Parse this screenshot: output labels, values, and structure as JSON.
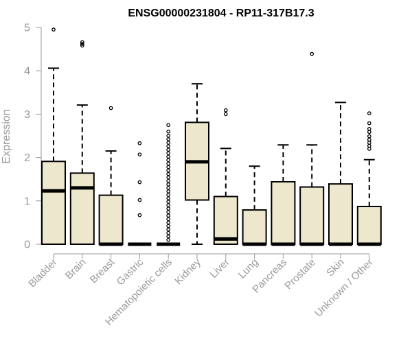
{
  "chart_data": {
    "type": "boxplot",
    "title": "ENSG00000231804 - RP11-317B17.3",
    "xlabel": "",
    "ylabel": "Expression",
    "ylim": [
      0,
      5
    ],
    "yticks": [
      0,
      1,
      2,
      3,
      4,
      5
    ],
    "colors": {
      "box_fill": "#ede7cd",
      "axis": "#999999",
      "stroke": "#000000"
    },
    "categories": [
      "Bladder",
      "Brain",
      "Breast",
      "Gastric",
      "Hematopoietic cells",
      "Kidney",
      "Liver",
      "Lung",
      "Pancreas",
      "Prostate",
      "Skin",
      "Unknown / Other"
    ],
    "boxes": [
      {
        "name": "Bladder",
        "q1": 0,
        "median": 1.23,
        "q3": 1.91,
        "whisker_low": 0,
        "whisker_high": 4.06,
        "outliers": [
          4.95
        ]
      },
      {
        "name": "Brain",
        "q1": 0,
        "median": 1.3,
        "q3": 1.64,
        "whisker_low": 0,
        "whisker_high": 3.21,
        "outliers": [
          4.58,
          4.62,
          4.66
        ]
      },
      {
        "name": "Breast",
        "q1": 0,
        "median": 0,
        "q3": 1.13,
        "whisker_low": 0,
        "whisker_high": 2.15,
        "outliers": [
          3.14
        ]
      },
      {
        "name": "Gastric",
        "q1": 0,
        "median": 0,
        "q3": 0,
        "whisker_low": 0,
        "whisker_high": 0,
        "outliers": [
          0.67,
          1.02,
          1.43,
          2.07,
          2.33
        ]
      },
      {
        "name": "Hematopoietic cells",
        "q1": 0,
        "median": 0,
        "q3": 0,
        "whisker_low": 0,
        "whisker_high": 0,
        "outliers": [
          0.1,
          0.18,
          0.26,
          0.34,
          0.42,
          0.5,
          0.58,
          0.66,
          0.74,
          0.82,
          0.9,
          0.98,
          1.06,
          1.14,
          1.22,
          1.3,
          1.38,
          1.46,
          1.54,
          1.62,
          1.7,
          1.78,
          1.86,
          1.94,
          2.02,
          2.1,
          2.18,
          2.26,
          2.34,
          2.42,
          2.5,
          2.6,
          2.75
        ]
      },
      {
        "name": "Kidney",
        "q1": 1.02,
        "median": 1.9,
        "q3": 2.81,
        "whisker_low": 0,
        "whisker_high": 3.7,
        "outliers": []
      },
      {
        "name": "Liver",
        "q1": 0,
        "median": 0.12,
        "q3": 1.1,
        "whisker_low": 0,
        "whisker_high": 2.21,
        "outliers": [
          3.0,
          3.09
        ]
      },
      {
        "name": "Lung",
        "q1": 0,
        "median": 0,
        "q3": 0.79,
        "whisker_low": 0,
        "whisker_high": 1.8,
        "outliers": []
      },
      {
        "name": "Pancreas",
        "q1": 0,
        "median": 0,
        "q3": 1.44,
        "whisker_low": 0,
        "whisker_high": 2.29,
        "outliers": []
      },
      {
        "name": "Prostate",
        "q1": 0,
        "median": 0,
        "q3": 1.32,
        "whisker_low": 0,
        "whisker_high": 2.29,
        "outliers": [
          4.39
        ]
      },
      {
        "name": "Skin",
        "q1": 0,
        "median": 0,
        "q3": 1.39,
        "whisker_low": 0,
        "whisker_high": 3.27,
        "outliers": []
      },
      {
        "name": "Unknown / Other",
        "q1": 0,
        "median": 0,
        "q3": 0.87,
        "whisker_low": 0,
        "whisker_high": 1.95,
        "outliers": [
          2.2,
          2.27,
          2.34,
          2.41,
          2.49,
          2.59,
          2.66,
          2.79,
          3.02
        ]
      }
    ]
  }
}
